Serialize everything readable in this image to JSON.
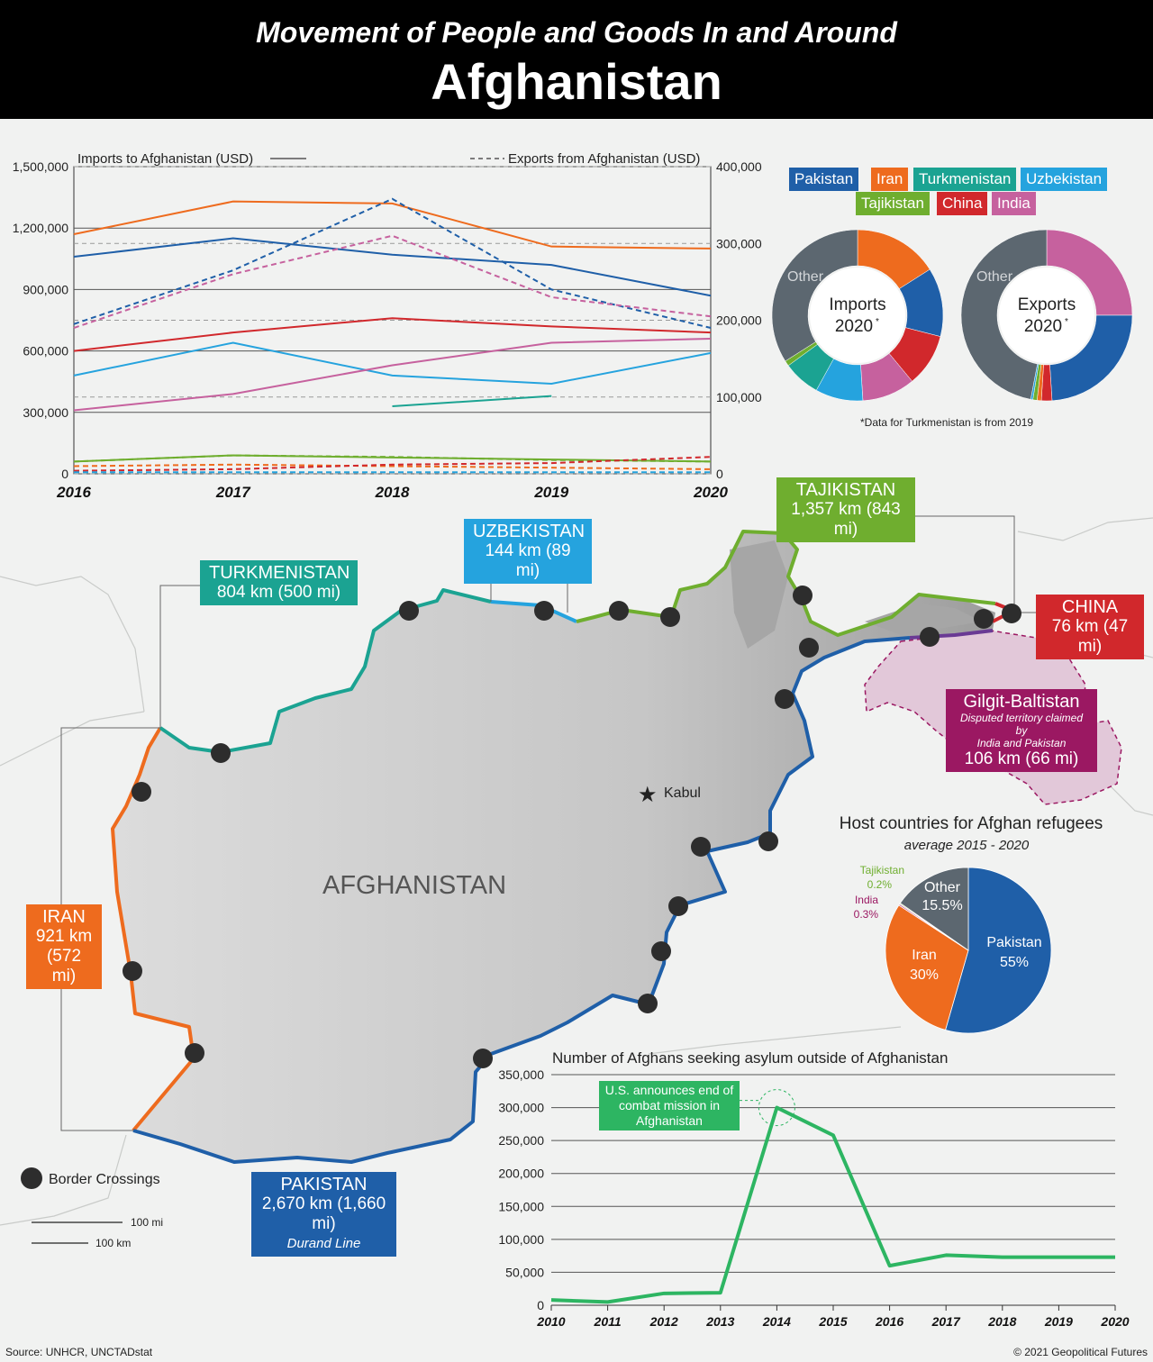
{
  "header": {
    "subtitle": "Movement of People and Goods In and Around",
    "title": "Afghanistan"
  },
  "colors": {
    "Pakistan": "#1f5fa8",
    "Iran": "#ee6b1e",
    "Turkmenistan": "#1ba392",
    "Uzbekistan": "#25a3de",
    "Tajikistan": "#6fae2f",
    "China": "#d1282c",
    "India": "#c6619e",
    "Other": "#5c6770",
    "GB": "#9b1862",
    "asylum": "#2db562"
  },
  "chart_data": [
    {
      "type": "line",
      "id": "trade",
      "legend_imports": "Imports to Afghanistan (USD)",
      "legend_exports": "Exports from Afghanistan (USD)",
      "x": [
        "2016",
        "2017",
        "2018",
        "2019",
        "2020"
      ],
      "y_left_ticks": [
        "0",
        "300,000",
        "600,000",
        "900,000",
        "1,200,000",
        "1,500,000"
      ],
      "y_right_ticks": [
        "0",
        "100,000",
        "200,000",
        "300,000",
        "400,000"
      ],
      "ylim_left": [
        0,
        1500000
      ],
      "ylim_right": [
        0,
        400000
      ],
      "imports": [
        {
          "name": "Iran",
          "values": [
            1170000,
            1330000,
            1320000,
            1110000,
            1100000
          ]
        },
        {
          "name": "Pakistan",
          "values": [
            1060000,
            1150000,
            1070000,
            1020000,
            870000
          ]
        },
        {
          "name": "China",
          "values": [
            600000,
            690000,
            760000,
            720000,
            690000
          ]
        },
        {
          "name": "Uzbekistan",
          "values": [
            480000,
            640000,
            480000,
            440000,
            590000
          ]
        },
        {
          "name": "India",
          "values": [
            310000,
            390000,
            530000,
            640000,
            660000
          ]
        },
        {
          "name": "Turkmenistan",
          "values": [
            null,
            null,
            330000,
            380000,
            null
          ]
        },
        {
          "name": "Tajikistan",
          "values": [
            60000,
            90000,
            80000,
            70000,
            60000
          ]
        }
      ],
      "exports": [
        {
          "name": "Pakistan",
          "values": [
            195000,
            265000,
            358000,
            240000,
            190000
          ]
        },
        {
          "name": "India",
          "values": [
            190000,
            260000,
            310000,
            230000,
            205000
          ]
        },
        {
          "name": "Tajikistan",
          "values": [
            16000,
            24000,
            22000,
            18000,
            16000
          ]
        },
        {
          "name": "Iran",
          "values": [
            10000,
            12000,
            10000,
            8000,
            6000
          ]
        },
        {
          "name": "China",
          "values": [
            4000,
            6000,
            12000,
            14000,
            22000
          ]
        },
        {
          "name": "Uzbekistan",
          "values": [
            2000,
            2000,
            2000,
            2000,
            2000
          ]
        }
      ]
    },
    {
      "type": "pie",
      "id": "imports2020",
      "center_label": "Imports",
      "center_year": "2020",
      "other_label": "Other",
      "slices": [
        {
          "name": "Iran",
          "value": 16
        },
        {
          "name": "Pakistan",
          "value": 13
        },
        {
          "name": "China",
          "value": 10
        },
        {
          "name": "India",
          "value": 10
        },
        {
          "name": "Uzbekistan",
          "value": 9
        },
        {
          "name": "Turkmenistan",
          "value": 7
        },
        {
          "name": "Tajikistan",
          "value": 1
        },
        {
          "name": "Other",
          "value": 34
        }
      ]
    },
    {
      "type": "pie",
      "id": "exports2020",
      "center_label": "Exports",
      "center_year": "2020",
      "other_label": "Other",
      "slices": [
        {
          "name": "India",
          "value": 25
        },
        {
          "name": "Pakistan",
          "value": 24
        },
        {
          "name": "China",
          "value": 2
        },
        {
          "name": "Iran",
          "value": 0.8
        },
        {
          "name": "Tajikistan",
          "value": 0.8
        },
        {
          "name": "Uzbekistan",
          "value": 0.4
        },
        {
          "name": "Other",
          "value": 47
        }
      ]
    },
    {
      "type": "pie",
      "id": "refugees",
      "title": "Host countries for Afghan refugees",
      "subtitle": "average 2015 - 2020",
      "slices": [
        {
          "name": "Pakistan",
          "value": 55,
          "label": "55%"
        },
        {
          "name": "Iran",
          "value": 30,
          "label": "30%"
        },
        {
          "name": "India",
          "value": 0.3,
          "label": "0.3%"
        },
        {
          "name": "Tajikistan",
          "value": 0.2,
          "label": "0.2%"
        },
        {
          "name": "Other",
          "value": 15.5,
          "label": "15.5%"
        }
      ]
    },
    {
      "type": "line",
      "id": "asylum",
      "title": "Number of Afghans seeking asylum outside of Afghanistan",
      "x": [
        "2010",
        "2011",
        "2012",
        "2013",
        "2014",
        "2015",
        "2016",
        "2017",
        "2018",
        "2019",
        "2020"
      ],
      "values": [
        8000,
        5000,
        18000,
        19000,
        300000,
        258000,
        60000,
        76000,
        73000,
        73000,
        73000
      ],
      "y_ticks": [
        "0",
        "50,000",
        "100,000",
        "150,000",
        "200,000",
        "250,000",
        "300,000",
        "350,000"
      ],
      "ylim": [
        0,
        350000
      ],
      "annotation": "U.S. announces end of combat mission in Afghanistan"
    }
  ],
  "pie_legend": [
    "Pakistan",
    "Iran",
    "Turkmenistan",
    "Uzbekistan",
    "Tajikistan",
    "China",
    "India"
  ],
  "pie_note": "*Data for Turkmenistan is from 2019",
  "annot_line1": "U.S. announces end of",
  "annot_line2": "combat mission in",
  "annot_line3": "Afghanistan",
  "map": {
    "country": "AFGHANISTAN",
    "capital": "Kabul",
    "borders": {
      "turkmenistan": {
        "name": "TURKMENISTAN",
        "dist": "804 km (500 mi)"
      },
      "uzbekistan": {
        "name": "UZBEKISTAN",
        "dist": "144 km (89 mi)"
      },
      "tajikistan": {
        "name": "TAJIKISTAN",
        "dist": "1,357 km (843 mi)"
      },
      "china": {
        "name": "CHINA",
        "dist": "76 km (47 mi)"
      },
      "gb": {
        "name": "Gilgit-Baltistan",
        "note1": "Disputed territory claimed by",
        "note2": "India and Pakistan",
        "dist": "106 km (66 mi)"
      },
      "iran": {
        "name": "IRAN",
        "dist1": "921 km",
        "dist2": "(572 mi)"
      },
      "pakistan": {
        "name": "PAKISTAN",
        "dist": "2,670 km (1,660 mi)",
        "note": "Durand Line"
      }
    },
    "legend_crossings": "Border Crossings",
    "scale_mi": "100 mi",
    "scale_km": "100 km"
  },
  "footer": {
    "source": "Source: UNHCR, UNCTADstat",
    "copyright": "© 2021 Geopolitical Futures"
  }
}
